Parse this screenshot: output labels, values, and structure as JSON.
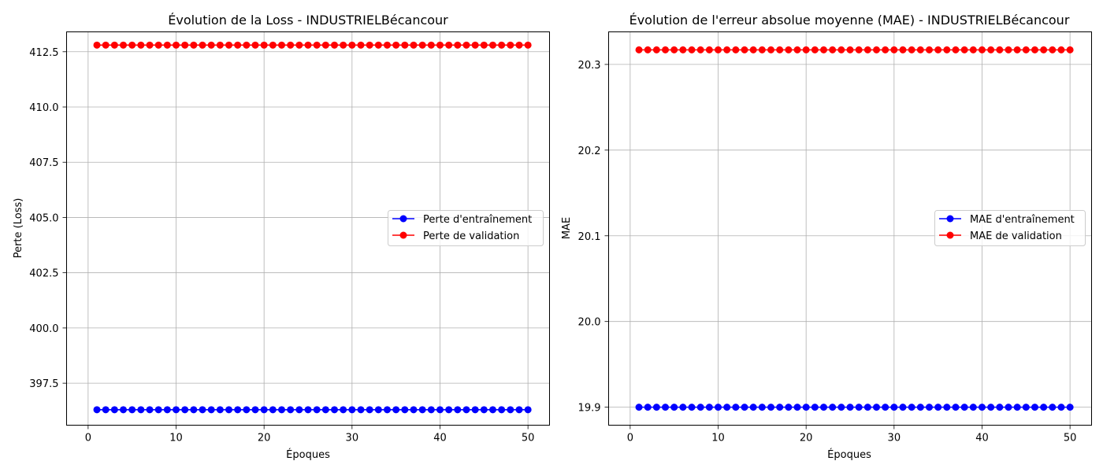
{
  "chart_data": [
    {
      "type": "line",
      "title": "Évolution de la Loss - INDUSTRIELBécancour",
      "xlabel": "Époques",
      "ylabel": "Perte (Loss)",
      "xlim": [
        -2.45,
        52.45
      ],
      "ylim": [
        395.6,
        413.4
      ],
      "xticks": [
        0,
        10,
        20,
        30,
        40,
        50
      ],
      "xtick_labels": [
        "0",
        "10",
        "20",
        "30",
        "40",
        "50"
      ],
      "yticks": [
        397.5,
        400,
        402.5,
        405,
        407.5,
        410,
        412.5
      ],
      "ytick_labels": [
        "397.5",
        "400.0",
        "402.5",
        "405.0",
        "407.5",
        "410.0",
        "412.5"
      ],
      "grid": true,
      "legend_position": "center-right",
      "x_start": 1,
      "x_end": 50,
      "series": [
        {
          "name": "Perte d'entraînement",
          "color": "#0000ff",
          "marker": "circle",
          "constant_value": 396.3
        },
        {
          "name": "Perte de validation",
          "color": "#ff0000",
          "marker": "circle",
          "constant_value": 412.8
        }
      ]
    },
    {
      "type": "line",
      "title": "Évolution de l'erreur absolue moyenne (MAE) - INDUSTRIELBécancour",
      "xlabel": "Époques",
      "ylabel": "MAE",
      "xlim": [
        -2.45,
        52.45
      ],
      "ylim": [
        19.879,
        20.338
      ],
      "xticks": [
        0,
        10,
        20,
        30,
        40,
        50
      ],
      "xtick_labels": [
        "0",
        "10",
        "20",
        "30",
        "40",
        "50"
      ],
      "yticks": [
        19.9,
        20.0,
        20.1,
        20.2,
        20.3
      ],
      "ytick_labels": [
        "19.9",
        "20.0",
        "20.1",
        "20.2",
        "20.3"
      ],
      "grid": true,
      "legend_position": "center-right",
      "x_start": 1,
      "x_end": 50,
      "series": [
        {
          "name": "MAE d'entraînement",
          "color": "#0000ff",
          "marker": "circle",
          "constant_value": 19.9
        },
        {
          "name": "MAE de validation",
          "color": "#ff0000",
          "marker": "circle",
          "constant_value": 20.317
        }
      ]
    }
  ]
}
